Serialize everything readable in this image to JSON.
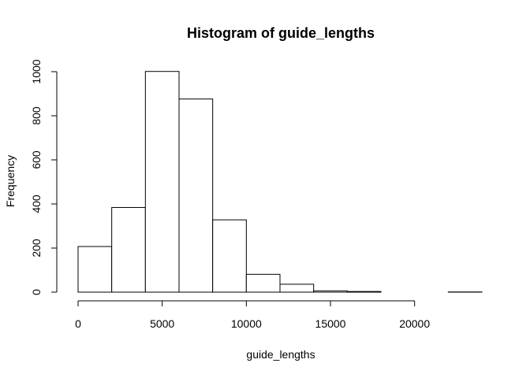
{
  "chart_data": {
    "type": "bar",
    "title": "Histogram of guide_lengths",
    "xlabel": "guide_lengths",
    "ylabel": "Frequency",
    "bins": [
      {
        "start": 0,
        "end": 2000,
        "count": 207
      },
      {
        "start": 2000,
        "end": 4000,
        "count": 384
      },
      {
        "start": 4000,
        "end": 6000,
        "count": 1001
      },
      {
        "start": 6000,
        "end": 8000,
        "count": 876
      },
      {
        "start": 8000,
        "end": 10000,
        "count": 328
      },
      {
        "start": 10000,
        "end": 12000,
        "count": 81
      },
      {
        "start": 12000,
        "end": 14000,
        "count": 36
      },
      {
        "start": 14000,
        "end": 16000,
        "count": 6
      },
      {
        "start": 16000,
        "end": 18000,
        "count": 3
      },
      {
        "start": 18000,
        "end": 20000,
        "count": 0
      },
      {
        "start": 20000,
        "end": 22000,
        "count": 0
      },
      {
        "start": 22000,
        "end": 24000,
        "count": 1
      }
    ],
    "xlim": [
      0,
      24000
    ],
    "ylim": [
      0,
      1000
    ],
    "xticks": [
      0,
      5000,
      10000,
      15000,
      20000
    ],
    "yticks": [
      0,
      200,
      400,
      600,
      800,
      1000
    ],
    "grid": false,
    "bar_fill": "#ffffff",
    "bar_stroke": "#000000"
  }
}
